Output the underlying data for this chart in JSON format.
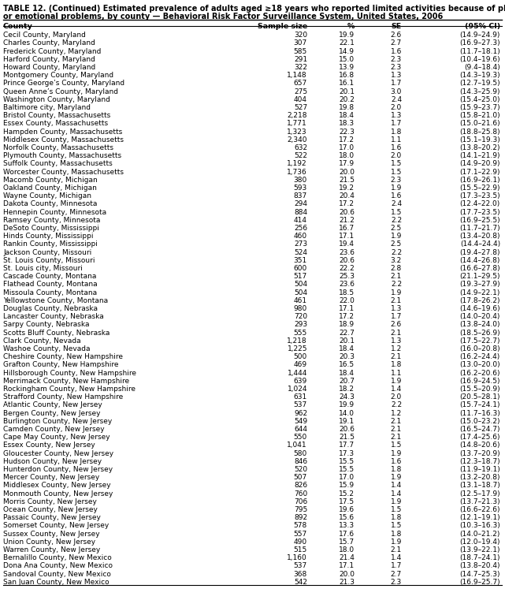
{
  "title_line1": "TABLE 12. (Continued) Estimated prevalence of adults aged ≥18 years who reported limited activities because of physical, mental",
  "title_line2": "or emotional problems, by county — Behavioral Risk Factor Surveillance System, United States, 2006",
  "headers": [
    "County",
    "Sample size",
    "%",
    "SE",
    "(95% CI)"
  ],
  "rows": [
    [
      "Cecil County, Maryland",
      "320",
      "19.9",
      "2.6",
      "(14.9–24.9)"
    ],
    [
      "Charles County, Maryland",
      "307",
      "22.1",
      "2.7",
      "(16.9–27.3)"
    ],
    [
      "Frederick County, Maryland",
      "585",
      "14.9",
      "1.6",
      "(11.7–18.1)"
    ],
    [
      "Harford County, Maryland",
      "291",
      "15.0",
      "2.3",
      "(10.4–19.6)"
    ],
    [
      "Howard County, Maryland",
      "322",
      "13.9",
      "2.3",
      "(9.4–18.4)"
    ],
    [
      "Montgomery County, Maryland",
      "1,148",
      "16.8",
      "1.3",
      "(14.3–19.3)"
    ],
    [
      "Prince George’s County, Maryland",
      "657",
      "16.1",
      "1.7",
      "(12.7–19.5)"
    ],
    [
      "Queen Anne’s County, Maryland",
      "275",
      "20.1",
      "3.0",
      "(14.3–25.9)"
    ],
    [
      "Washington County, Maryland",
      "404",
      "20.2",
      "2.4",
      "(15.4–25.0)"
    ],
    [
      "Baltimore city, Maryland",
      "527",
      "19.8",
      "2.0",
      "(15.9–23.7)"
    ],
    [
      "Bristol County, Massachusetts",
      "2,218",
      "18.4",
      "1.3",
      "(15.8–21.0)"
    ],
    [
      "Essex County, Massachusetts",
      "1,771",
      "18.3",
      "1.7",
      "(15.0–21.6)"
    ],
    [
      "Hampden County, Massachusetts",
      "1,323",
      "22.3",
      "1.8",
      "(18.8–25.8)"
    ],
    [
      "Middlesex County, Massachusetts",
      "2,340",
      "17.2",
      "1.1",
      "(15.1–19.3)"
    ],
    [
      "Norfolk County, Massachusetts",
      "632",
      "17.0",
      "1.6",
      "(13.8–20.2)"
    ],
    [
      "Plymouth County, Massachusetts",
      "522",
      "18.0",
      "2.0",
      "(14.1–21.9)"
    ],
    [
      "Suffolk County, Massachusetts",
      "1,192",
      "17.9",
      "1.5",
      "(14.9–20.9)"
    ],
    [
      "Worcester County, Massachusetts",
      "1,736",
      "20.0",
      "1.5",
      "(17.1–22.9)"
    ],
    [
      "Macomb County, Michigan",
      "380",
      "21.5",
      "2.3",
      "(16.9–26.1)"
    ],
    [
      "Oakland County, Michigan",
      "593",
      "19.2",
      "1.9",
      "(15.5–22.9)"
    ],
    [
      "Wayne County, Michigan",
      "837",
      "20.4",
      "1.6",
      "(17.3–23.5)"
    ],
    [
      "Dakota County, Minnesota",
      "294",
      "17.2",
      "2.4",
      "(12.4–22.0)"
    ],
    [
      "Hennepin County, Minnesota",
      "884",
      "20.6",
      "1.5",
      "(17.7–23.5)"
    ],
    [
      "Ramsey County, Minnesota",
      "414",
      "21.2",
      "2.2",
      "(16.9–25.5)"
    ],
    [
      "DeSoto County, Mississippi",
      "256",
      "16.7",
      "2.5",
      "(11.7–21.7)"
    ],
    [
      "Hinds County, Mississippi",
      "460",
      "17.1",
      "1.9",
      "(13.4–20.8)"
    ],
    [
      "Rankin County, Mississippi",
      "273",
      "19.4",
      "2.5",
      "(14.4–24.4)"
    ],
    [
      "Jackson County, Missouri",
      "524",
      "23.6",
      "2.2",
      "(19.4–27.8)"
    ],
    [
      "St. Louis County, Missouri",
      "351",
      "20.6",
      "3.2",
      "(14.4–26.8)"
    ],
    [
      "St. Louis city, Missouri",
      "600",
      "22.2",
      "2.8",
      "(16.6–27.8)"
    ],
    [
      "Cascade County, Montana",
      "517",
      "25.3",
      "2.1",
      "(21.1–29.5)"
    ],
    [
      "Flathead County, Montana",
      "504",
      "23.6",
      "2.2",
      "(19.3–27.9)"
    ],
    [
      "Missoula County, Montana",
      "504",
      "18.5",
      "1.9",
      "(14.9–22.1)"
    ],
    [
      "Yellowstone County, Montana",
      "461",
      "22.0",
      "2.1",
      "(17.8–26.2)"
    ],
    [
      "Douglas County, Nebraska",
      "980",
      "17.1",
      "1.3",
      "(14.6–19.6)"
    ],
    [
      "Lancaster County, Nebraska",
      "720",
      "17.2",
      "1.7",
      "(14.0–20.4)"
    ],
    [
      "Sarpy County, Nebraska",
      "293",
      "18.9",
      "2.6",
      "(13.8–24.0)"
    ],
    [
      "Scotts Bluff County, Nebraska",
      "555",
      "22.7",
      "2.1",
      "(18.5–26.9)"
    ],
    [
      "Clark County, Nevada",
      "1,218",
      "20.1",
      "1.3",
      "(17.5–22.7)"
    ],
    [
      "Washoe County, Nevada",
      "1,225",
      "18.4",
      "1.2",
      "(16.0–20.8)"
    ],
    [
      "Cheshire County, New Hampshire",
      "500",
      "20.3",
      "2.1",
      "(16.2–24.4)"
    ],
    [
      "Grafton County, New Hampshire",
      "469",
      "16.5",
      "1.8",
      "(13.0–20.0)"
    ],
    [
      "Hillsborough County, New Hampshire",
      "1,444",
      "18.4",
      "1.1",
      "(16.2–20.6)"
    ],
    [
      "Merrimack County, New Hampshire",
      "639",
      "20.7",
      "1.9",
      "(16.9–24.5)"
    ],
    [
      "Rockingham County, New Hampshire",
      "1,024",
      "18.2",
      "1.4",
      "(15.5–20.9)"
    ],
    [
      "Strafford County, New Hampshire",
      "631",
      "24.3",
      "2.0",
      "(20.5–28.1)"
    ],
    [
      "Atlantic County, New Jersey",
      "537",
      "19.9",
      "2.2",
      "(15.7–24.1)"
    ],
    [
      "Bergen County, New Jersey",
      "962",
      "14.0",
      "1.2",
      "(11.7–16.3)"
    ],
    [
      "Burlington County, New Jersey",
      "549",
      "19.1",
      "2.1",
      "(15.0–23.2)"
    ],
    [
      "Camden County, New Jersey",
      "644",
      "20.6",
      "2.1",
      "(16.5–24.7)"
    ],
    [
      "Cape May County, New Jersey",
      "550",
      "21.5",
      "2.1",
      "(17.4–25.6)"
    ],
    [
      "Essex County, New Jersey",
      "1,041",
      "17.7",
      "1.5",
      "(14.8–20.6)"
    ],
    [
      "Gloucester County, New Jersey",
      "580",
      "17.3",
      "1.9",
      "(13.7–20.9)"
    ],
    [
      "Hudson County, New Jersey",
      "846",
      "15.5",
      "1.6",
      "(12.3–18.7)"
    ],
    [
      "Hunterdon County, New Jersey",
      "520",
      "15.5",
      "1.8",
      "(11.9–19.1)"
    ],
    [
      "Mercer County, New Jersey",
      "507",
      "17.0",
      "1.9",
      "(13.2–20.8)"
    ],
    [
      "Middlesex County, New Jersey",
      "826",
      "15.9",
      "1.4",
      "(13.1–18.7)"
    ],
    [
      "Monmouth County, New Jersey",
      "760",
      "15.2",
      "1.4",
      "(12.5–17.9)"
    ],
    [
      "Morris County, New Jersey",
      "706",
      "17.5",
      "1.9",
      "(13.7–21.3)"
    ],
    [
      "Ocean County, New Jersey",
      "795",
      "19.6",
      "1.5",
      "(16.6–22.6)"
    ],
    [
      "Passaic County, New Jersey",
      "892",
      "15.6",
      "1.8",
      "(12.1–19.1)"
    ],
    [
      "Somerset County, New Jersey",
      "578",
      "13.3",
      "1.5",
      "(10.3–16.3)"
    ],
    [
      "Sussex County, New Jersey",
      "557",
      "17.6",
      "1.8",
      "(14.0–21.2)"
    ],
    [
      "Union County, New Jersey",
      "490",
      "15.7",
      "1.9",
      "(12.0–19.4)"
    ],
    [
      "Warren County, New Jersey",
      "515",
      "18.0",
      "2.1",
      "(13.9–22.1)"
    ],
    [
      "Bernalillo County, New Mexico",
      "1,160",
      "21.4",
      "1.4",
      "(18.7–24.1)"
    ],
    [
      "Dona Ana County, New Mexico",
      "537",
      "17.1",
      "1.7",
      "(13.8–20.4)"
    ],
    [
      "Sandoval County, New Mexico",
      "368",
      "20.0",
      "2.7",
      "(14.7–25.3)"
    ],
    [
      "San Juan County, New Mexico",
      "542",
      "21.3",
      "2.3",
      "(16.9–25.7)"
    ]
  ],
  "font_size": 6.5,
  "header_font_size": 6.8,
  "title_font_size": 7.0,
  "bg_color": "#ffffff"
}
